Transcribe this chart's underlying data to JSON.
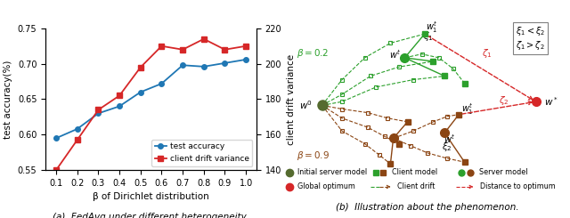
{
  "left": {
    "x": [
      0.1,
      0.2,
      0.3,
      0.4,
      0.5,
      0.6,
      0.7,
      0.8,
      0.9,
      1.0
    ],
    "accuracy": [
      0.595,
      0.608,
      0.63,
      0.64,
      0.66,
      0.672,
      0.698,
      0.696,
      0.701,
      0.706
    ],
    "drift": [
      140,
      157,
      174,
      182,
      198,
      210,
      208,
      214,
      208,
      210
    ],
    "ylabel_left": "test accuracy(%)",
    "ylabel_right": "client drift variance",
    "xlabel": "β of Dirichlet distribution",
    "ylim_left": [
      0.55,
      0.75
    ],
    "ylim_right": [
      140,
      220
    ],
    "yticks_left": [
      0.55,
      0.6,
      0.65,
      0.7,
      0.75
    ],
    "yticks_right": [
      140,
      160,
      180,
      200,
      220
    ],
    "caption": "(a)  FedAvg under different heterogeneity.",
    "accuracy_color": "#1f77b4",
    "drift_color": "#d62728"
  },
  "right": {
    "caption": "(b)  Illustration about the phenomenon.",
    "beta02_color": "#2ca02c",
    "beta09_color": "#8B4513",
    "w0_color": "#556B2F",
    "optimum_color": "#d62728"
  }
}
